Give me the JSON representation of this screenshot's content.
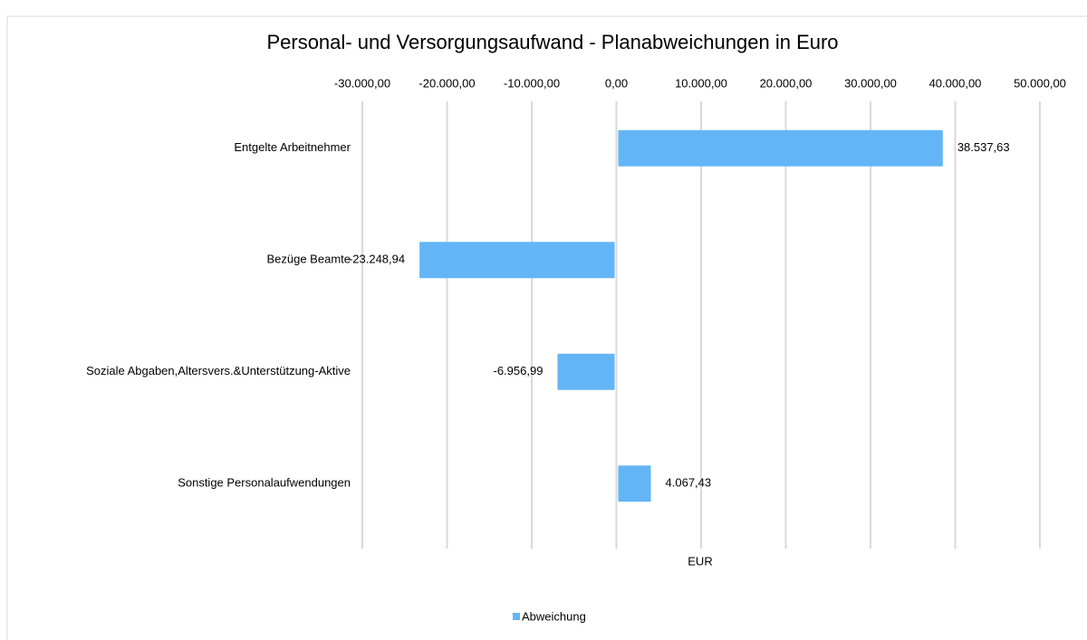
{
  "chart_data": {
    "type": "barh",
    "title": "Personal- und Versorgungsaufwand - Planabweichungen in Euro",
    "x_label": "EUR",
    "categories": [
      "Entgelte Arbeitnehmer",
      "Bezüge Beamte",
      "Soziale Abgaben,Altersvers.&Unterstützung-Aktive",
      "Sonstige Personalaufwendungen"
    ],
    "series": [
      {
        "name": "Abweichung",
        "color": "#63b5f5",
        "values": [
          38537.63,
          -23248.94,
          -6956.99,
          4067.43
        ],
        "value_labels": [
          "38.537,63",
          "-23.248,94",
          "-6.956,99",
          "4.067,43"
        ]
      }
    ],
    "xlim": [
      -30000,
      50000
    ],
    "xticks": [
      {
        "value": -30000,
        "label": "-30.000,00"
      },
      {
        "value": -20000,
        "label": "-20.000,00"
      },
      {
        "value": -10000,
        "label": "-10.000,00"
      },
      {
        "value": 0,
        "label": "0,00"
      },
      {
        "value": 10000,
        "label": "10.000,00"
      },
      {
        "value": 20000,
        "label": "20.000,00"
      },
      {
        "value": 30000,
        "label": "30.000,00"
      },
      {
        "value": 40000,
        "label": "40.000,00"
      },
      {
        "value": 50000,
        "label": "50.000,00"
      }
    ],
    "grid": true,
    "legend": "bottom"
  }
}
